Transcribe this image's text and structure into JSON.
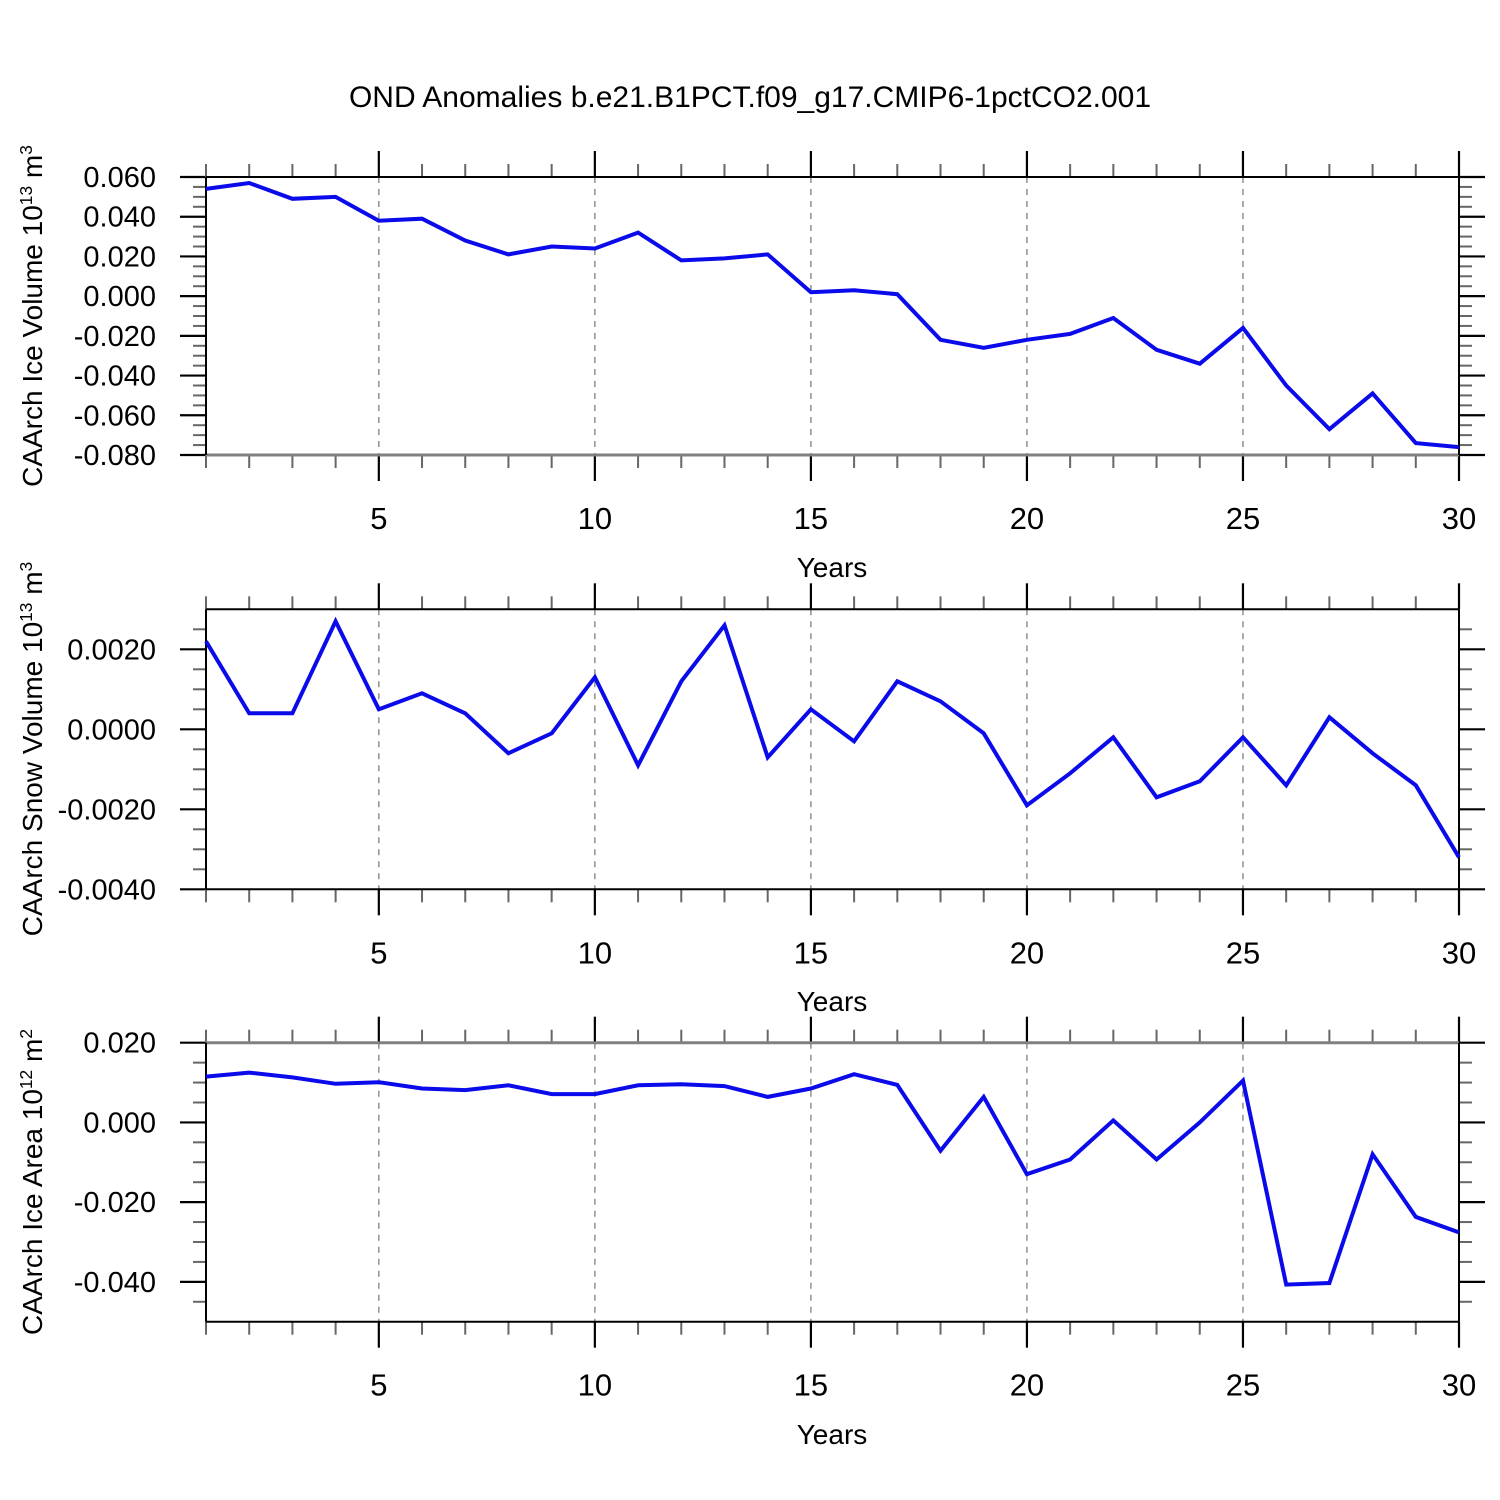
{
  "title": "OND Anomalies b.e21.B1PCT.f09_g17.CMIP6-1pctCO2.001",
  "colors": {
    "line": "#0a0aeb",
    "axis": "#000000",
    "gridline": "#888888",
    "minor_tick": "#666666",
    "soft_edge": "#808080",
    "background": "#ffffff",
    "text": "#000000"
  },
  "years": [
    1,
    2,
    3,
    4,
    5,
    6,
    7,
    8,
    9,
    10,
    11,
    12,
    13,
    14,
    15,
    16,
    17,
    18,
    19,
    20,
    21,
    22,
    23,
    24,
    25,
    26,
    27,
    28,
    29,
    30
  ],
  "chart_data": [
    {
      "type": "line",
      "id": "ice-volume",
      "xlabel": "Years",
      "ylabel_parts": {
        "base1": "CAArch Ice Volume 10",
        "sup1": "13",
        "base2": " m",
        "sup2": "3"
      },
      "x": [
        1,
        2,
        3,
        4,
        5,
        6,
        7,
        8,
        9,
        10,
        11,
        12,
        13,
        14,
        15,
        16,
        17,
        18,
        19,
        20,
        21,
        22,
        23,
        24,
        25,
        26,
        27,
        28,
        29,
        30
      ],
      "values": [
        0.054,
        0.057,
        0.049,
        0.05,
        0.038,
        0.039,
        0.028,
        0.021,
        0.025,
        0.024,
        0.032,
        0.018,
        0.019,
        0.021,
        0.002,
        0.003,
        0.001,
        -0.022,
        -0.026,
        -0.022,
        -0.019,
        -0.011,
        -0.027,
        -0.034,
        -0.016,
        -0.045,
        -0.067,
        -0.049,
        -0.074,
        -0.076
      ],
      "xlim": [
        1,
        30
      ],
      "ylim": [
        -0.08,
        0.06
      ],
      "xticks_major": [
        5,
        10,
        15,
        20,
        25,
        30
      ],
      "xtick_labels": [
        "5",
        "10",
        "15",
        "20",
        "25",
        "30"
      ],
      "xtick_minor_step": 1,
      "yticks_major": [
        0.06,
        0.04,
        0.02,
        0.0,
        -0.02,
        -0.04,
        -0.06,
        -0.08
      ],
      "ytick_labels": [
        "0.060",
        "0.040",
        "0.020",
        "0.000",
        "-0.020",
        "-0.040",
        "-0.060",
        "-0.080"
      ],
      "ytick_minor_step": 0.005,
      "gridlines_x": [
        5,
        10,
        15,
        20,
        25
      ],
      "grid": "dashed-vertical",
      "legend": "none"
    },
    {
      "type": "line",
      "id": "snow-volume",
      "xlabel": "Years",
      "ylabel_parts": {
        "base1": "CAArch Snow Volume 10",
        "sup1": "13",
        "base2": " m",
        "sup2": "3"
      },
      "x": [
        1,
        2,
        3,
        4,
        5,
        6,
        7,
        8,
        9,
        10,
        11,
        12,
        13,
        14,
        15,
        16,
        17,
        18,
        19,
        20,
        21,
        22,
        23,
        24,
        25,
        26,
        27,
        28,
        29,
        30
      ],
      "values": [
        0.0022,
        0.0004,
        0.0004,
        0.0027,
        0.0005,
        0.0009,
        0.0004,
        -0.0006,
        -0.0001,
        0.0013,
        -0.0009,
        0.0012,
        0.0026,
        -0.0007,
        0.0005,
        -0.0003,
        0.0012,
        0.0007,
        -0.0001,
        -0.0019,
        -0.0011,
        -0.0002,
        -0.0017,
        -0.0013,
        -0.0002,
        -0.0014,
        0.0003,
        -0.0006,
        -0.0014,
        -0.0032
      ],
      "xlim": [
        1,
        30
      ],
      "ylim": [
        -0.004,
        0.003
      ],
      "xticks_major": [
        5,
        10,
        15,
        20,
        25,
        30
      ],
      "xtick_labels": [
        "5",
        "10",
        "15",
        "20",
        "25",
        "30"
      ],
      "xtick_minor_step": 1,
      "yticks_major": [
        0.002,
        0.0,
        -0.002,
        -0.004
      ],
      "ytick_labels": [
        "0.0020",
        "0.0000",
        "-0.0020",
        "-0.0040"
      ],
      "ytick_minor_step": 0.0005,
      "gridlines_x": [
        5,
        10,
        15,
        20,
        25
      ],
      "grid": "dashed-vertical",
      "legend": "none"
    },
    {
      "type": "line",
      "id": "ice-area",
      "xlabel": "Years",
      "ylabel_parts": {
        "base1": "CAArch Ice Area 10",
        "sup1": "12",
        "base2": " m",
        "sup2": "2"
      },
      "x": [
        1,
        2,
        3,
        4,
        5,
        6,
        7,
        8,
        9,
        10,
        11,
        12,
        13,
        14,
        15,
        16,
        17,
        18,
        19,
        20,
        21,
        22,
        23,
        24,
        25,
        26,
        27,
        28,
        29,
        30
      ],
      "values": [
        0.0115,
        0.0125,
        0.0113,
        0.0097,
        0.0101,
        0.0085,
        0.0081,
        0.0093,
        0.0071,
        0.0071,
        0.0093,
        0.0096,
        0.0091,
        0.0064,
        0.0085,
        0.0121,
        0.0094,
        -0.0071,
        0.0064,
        -0.013,
        -0.0093,
        0.0005,
        -0.0093,
        0.0,
        0.0105,
        -0.0407,
        -0.0403,
        -0.008,
        -0.0237,
        -0.0276
      ],
      "xlim": [
        1,
        30
      ],
      "ylim": [
        -0.05,
        0.02
      ],
      "xticks_major": [
        5,
        10,
        15,
        20,
        25,
        30
      ],
      "xtick_labels": [
        "5",
        "10",
        "15",
        "20",
        "25",
        "30"
      ],
      "xtick_minor_step": 1,
      "yticks_major": [
        0.02,
        0.0,
        -0.02,
        -0.04
      ],
      "ytick_labels": [
        "0.020",
        "0.000",
        "-0.020",
        "-0.040"
      ],
      "ytick_minor_step": 0.005,
      "gridlines_x": [
        5,
        10,
        15,
        20,
        25
      ],
      "grid": "dashed-vertical",
      "legend": "none"
    }
  ]
}
